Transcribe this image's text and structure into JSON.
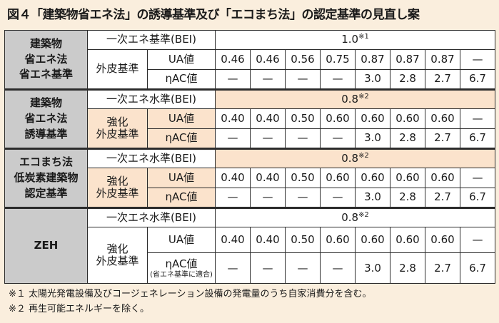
{
  "title": "図４「建築物省エネ法」の誘導基準及び「エコまち法」の認定基準の見直し案",
  "groups": [
    {
      "category": "建築物\n省エネ法\n省エネ基準",
      "energy_label": "一次エネ基準(BEI)",
      "energy_value": "1.0",
      "energy_note": "※1",
      "envelope_label": "外皮基準",
      "ua_label": "UA値",
      "eta_label": "ηAC値",
      "eta_note": "",
      "ua_values": [
        "0.46",
        "0.46",
        "0.56",
        "0.75",
        "0.87",
        "0.87",
        "0.87",
        "—"
      ],
      "eta_values": [
        "—",
        "—",
        "—",
        "—",
        "3.0",
        "2.8",
        "2.7",
        "6.7"
      ]
    },
    {
      "category": "建築物\n省エネ法\n誘導基準",
      "energy_label": "一次エネ水準(BEI)",
      "energy_value": "0.8",
      "energy_note": "※2",
      "envelope_label": "強化\n外皮基準",
      "ua_label": "UA値",
      "eta_label": "ηAC値",
      "eta_note": "",
      "ua_values": [
        "0.40",
        "0.40",
        "0.50",
        "0.60",
        "0.60",
        "0.60",
        "0.60",
        "—"
      ],
      "eta_values": [
        "—",
        "—",
        "—",
        "—",
        "3.0",
        "2.8",
        "2.7",
        "6.7"
      ]
    },
    {
      "category": "エコまち法\n低炭素建築物\n認定基準",
      "energy_label": "一次エネ水準(BEI)",
      "energy_value": "0.8",
      "energy_note": "※2",
      "envelope_label": "強化\n外皮基準",
      "ua_label": "UA値",
      "eta_label": "ηAC値",
      "eta_note": "",
      "ua_values": [
        "0.40",
        "0.40",
        "0.50",
        "0.60",
        "0.60",
        "0.60",
        "0.60",
        "—"
      ],
      "eta_values": [
        "—",
        "—",
        "—",
        "—",
        "3.0",
        "2.8",
        "2.7",
        "6.7"
      ]
    },
    {
      "category": "ZEH",
      "energy_label": "一次エネ水準(BEI)",
      "energy_value": "0.8",
      "energy_note": "※2",
      "envelope_label": "強化\n外皮基準",
      "ua_label": "UA値",
      "eta_label": "ηAC値",
      "eta_note": "(省エネ基準に適合)",
      "ua_values": [
        "0.40",
        "0.40",
        "0.50",
        "0.60",
        "0.60",
        "0.60",
        "0.60",
        "—"
      ],
      "eta_values": [
        "—",
        "—",
        "—",
        "—",
        "3.0",
        "2.8",
        "2.7",
        "6.7"
      ]
    }
  ],
  "notes": [
    "※１ 太陽光発電設備及びコージェネレーション設備の発電量のうち自家消費分を含む。",
    "※２ 再生可能エネルギーを除く。"
  ],
  "colors": {
    "background": "#faeedd",
    "category_fill": "#cbcbcb",
    "peach_fill": "#fbe3cc",
    "border": "#2b2b2b"
  }
}
